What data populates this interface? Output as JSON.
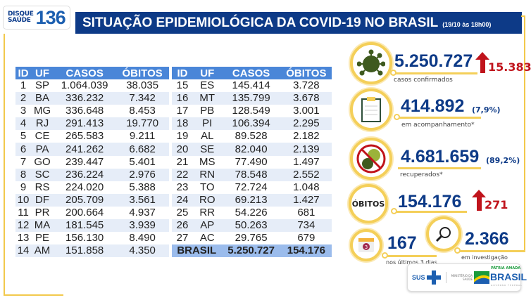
{
  "logo": {
    "line1": "DISQUE",
    "line2": "SAÚDE",
    "number": "136"
  },
  "header": {
    "title": "SITUAÇÃO EPIDEMIOLÓGICA DA COVID-19 NO BRASIL",
    "date": "(19/10 às 18h00)"
  },
  "table": {
    "columns": [
      "ID",
      "UF",
      "CASOS",
      "ÓBITOS"
    ],
    "left": [
      [
        "1",
        "SP",
        "1.064.039",
        "38.035"
      ],
      [
        "2",
        "BA",
        "336.232",
        "7.342"
      ],
      [
        "3",
        "MG",
        "336.648",
        "8.453"
      ],
      [
        "4",
        "RJ",
        "291.413",
        "19.770"
      ],
      [
        "5",
        "CE",
        "265.583",
        "9.211"
      ],
      [
        "6",
        "PA",
        "241.262",
        "6.682"
      ],
      [
        "7",
        "GO",
        "239.447",
        "5.401"
      ],
      [
        "8",
        "SC",
        "236.224",
        "2.976"
      ],
      [
        "9",
        "RS",
        "224.020",
        "5.388"
      ],
      [
        "10",
        "DF",
        "205.709",
        "3.561"
      ],
      [
        "11",
        "PR",
        "200.664",
        "4.937"
      ],
      [
        "12",
        "MA",
        "181.545",
        "3.939"
      ],
      [
        "13",
        "PE",
        "156.130",
        "8.490"
      ],
      [
        "14",
        "AM",
        "151.858",
        "4.350"
      ]
    ],
    "right": [
      [
        "15",
        "ES",
        "145.414",
        "3.728"
      ],
      [
        "16",
        "MT",
        "135.799",
        "3.678"
      ],
      [
        "17",
        "PB",
        "128.549",
        "3.001"
      ],
      [
        "18",
        "PI",
        "106.394",
        "2.295"
      ],
      [
        "19",
        "AL",
        "89.528",
        "2.182"
      ],
      [
        "20",
        "SE",
        "82.040",
        "2.139"
      ],
      [
        "21",
        "MS",
        "77.490",
        "1.497"
      ],
      [
        "22",
        "RN",
        "78.548",
        "2.552"
      ],
      [
        "23",
        "TO",
        "72.724",
        "1.048"
      ],
      [
        "24",
        "RO",
        "69.213",
        "1.427"
      ],
      [
        "25",
        "RR",
        "54.226",
        "681"
      ],
      [
        "26",
        "AP",
        "50.263",
        "734"
      ],
      [
        "27",
        "AC",
        "29.765",
        "679"
      ]
    ],
    "total": {
      "label": "BRASIL",
      "casos": "5.250.727",
      "obitos": "154.176"
    }
  },
  "stats": {
    "confirmed": {
      "value": "5.250.727",
      "increase": "15.383",
      "label": "casos confirmados"
    },
    "monitoring": {
      "value": "414.892",
      "pct": "(7,9%)",
      "label": "em acompanhamento*"
    },
    "recovered": {
      "value": "4.681.659",
      "pct": "(89,2%)",
      "label": "recuperados*"
    },
    "deaths": {
      "badge": "ÓBITOS",
      "value": "154.176",
      "increase": "271"
    },
    "recent": {
      "calendar_day": "3",
      "value": "167",
      "label": "nos últimos 3 dias"
    },
    "investigation": {
      "value": "2.366",
      "label": "em investigação"
    }
  },
  "footer": {
    "sus": "SUS",
    "ministry": "MINISTÉRIO DA SAÚDE",
    "slogan": "PÁTRIA AMADA",
    "brasil": "BRASIL",
    "gov": "GOVERNO FEDERAL"
  },
  "colors": {
    "navy": "#0d3a87",
    "accent_yellow": "#f4cf59",
    "red": "#c0141c",
    "table_header": "#4a86d8"
  }
}
